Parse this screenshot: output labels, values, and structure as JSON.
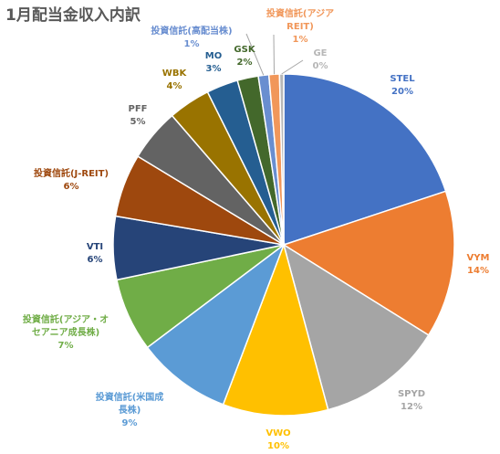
{
  "chart_data": {
    "type": "pie",
    "title": "1月配当金収入内訳",
    "start_angle_deg": 0,
    "direction": "clockwise",
    "legend": "none",
    "slices": [
      {
        "name": "STEL",
        "value": 20,
        "label": "20%",
        "color": "#4472C4"
      },
      {
        "name": "VYM",
        "value": 14,
        "label": "14%",
        "color": "#ED7D31"
      },
      {
        "name": "SPYD",
        "value": 12,
        "label": "12%",
        "color": "#A5A5A5"
      },
      {
        "name": "VWO",
        "value": 10,
        "label": "10%",
        "color": "#FFC000"
      },
      {
        "name": "投資信託(米国成長株)",
        "value": 9,
        "label": "9%",
        "color": "#5B9BD5"
      },
      {
        "name": "投資信託(アジア・オセアニア成長株)",
        "value": 7,
        "label": "7%",
        "color": "#70AD47"
      },
      {
        "name": "VTI",
        "value": 6,
        "label": "6%",
        "color": "#264478"
      },
      {
        "name": "投資信託(J-REIT)",
        "value": 6,
        "label": "6%",
        "color": "#9E480E"
      },
      {
        "name": "PFF",
        "value": 5,
        "label": "5%",
        "color": "#636363"
      },
      {
        "name": "WBK",
        "value": 4,
        "label": "4%",
        "color": "#997300"
      },
      {
        "name": "MO",
        "value": 3,
        "label": "3%",
        "color": "#255E91"
      },
      {
        "name": "GSK",
        "value": 2,
        "label": "2%",
        "color": "#43682B"
      },
      {
        "name": "投資信託(高配当株)",
        "value": 1,
        "label": "1%",
        "color": "#698ED0"
      },
      {
        "name": "投資信託(アジアREIT)",
        "value": 1,
        "label": "1%",
        "color": "#F1975A"
      },
      {
        "name": "GE",
        "value": 0.4,
        "label": "0%",
        "color": "#B7B7B7"
      }
    ]
  }
}
